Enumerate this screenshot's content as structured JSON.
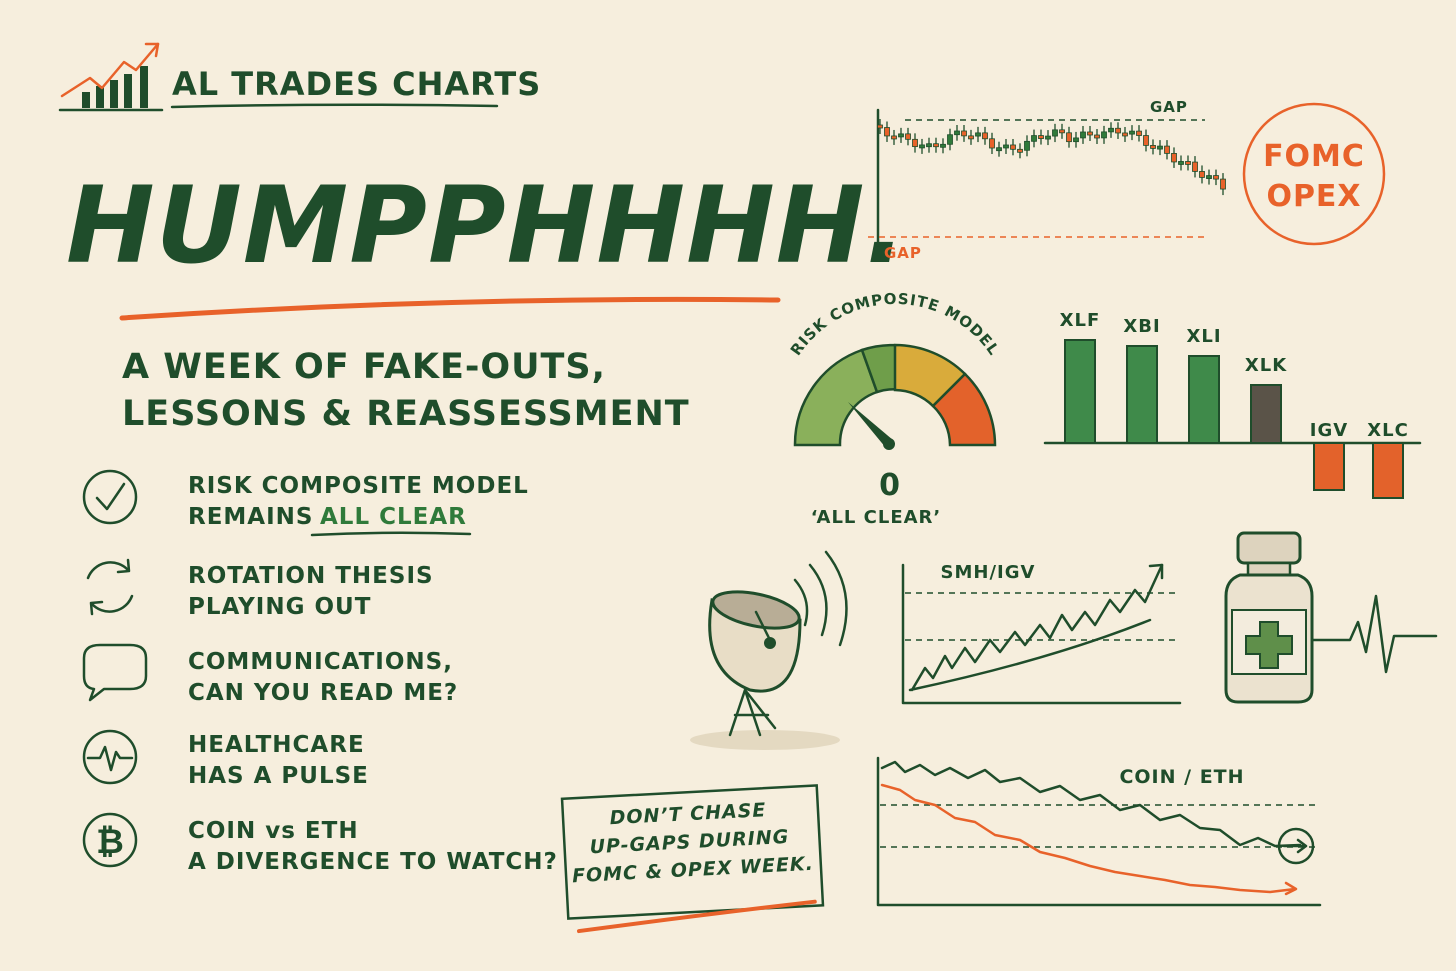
{
  "header": {
    "brand": "AL TRADES CHARTS",
    "title": "HUMPPHHHH.",
    "subtitle": [
      "A WEEK OF FAKE-OUTS,",
      "LESSONS & REASSESSMENT"
    ]
  },
  "list": [
    {
      "line1": "RISK COMPOSITE MODEL",
      "line2": "REMAINS",
      "highlight": "ALL CLEAR"
    },
    {
      "line1": "ROTATION THESIS",
      "line2": "PLAYING OUT"
    },
    {
      "line1": "COMMUNICATIONS,",
      "line2": "CAN YOU READ ME?"
    },
    {
      "line1": "HEALTHCARE",
      "line2": "HAS A PULSE"
    },
    {
      "line1": "COIN vs ETH",
      "line2": "A DIVERGENCE TO WATCH?"
    }
  ],
  "price_sketch": {
    "gap_top": "GAP",
    "gap_bottom": "GAP",
    "badge": [
      "FOMC",
      "OPEX"
    ]
  },
  "gauge": {
    "title": "RISK COMPOSITE MODEL",
    "reading": "0",
    "caption": "‘ALL CLEAR’"
  },
  "sectors": [
    "XLF",
    "XBI",
    "XLI",
    "XLK",
    "IGV",
    "XLC"
  ],
  "smh_igv": {
    "title": "SMH/IGV"
  },
  "coin_eth": {
    "title": "COIN / ETH"
  },
  "note": [
    "DON’T CHASE",
    "UP-GAPS DURING",
    "FOMC & OPEX WEEK."
  ]
}
